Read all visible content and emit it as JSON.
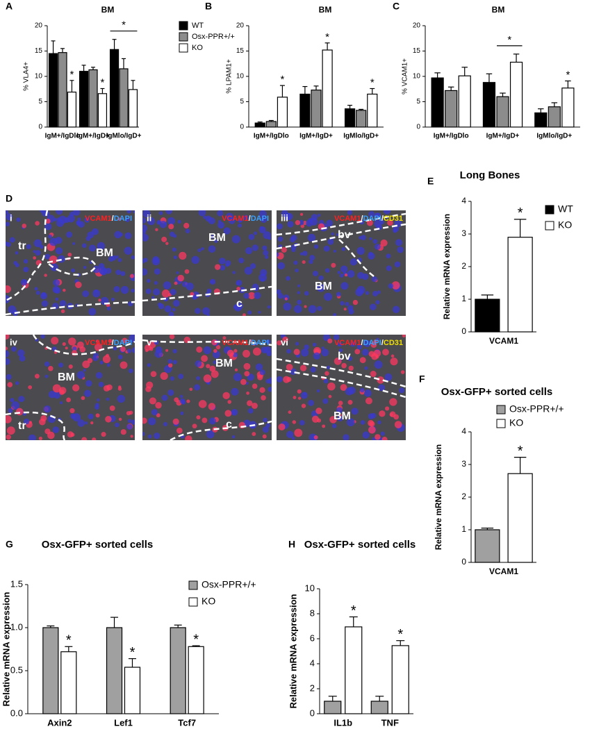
{
  "chart_data": [
    {
      "type": "bar",
      "panel": "A",
      "title": "BM",
      "y_label": "% VLA4+",
      "categories": [
        "IgM+/IgDlo",
        "IgM+/IgD+",
        "IgMlo/IgD+"
      ],
      "series": [
        {
          "name": "WT",
          "color": "#000000",
          "values": [
            14.5,
            11,
            15.3
          ],
          "errors": [
            2.5,
            1.2,
            2
          ],
          "stars": [
            null,
            null,
            null
          ]
        },
        {
          "name": "Osx-PPR+/+",
          "color": "#8c8c8c",
          "values": [
            14.7,
            11.3,
            11.5
          ],
          "errors": [
            0.8,
            0.5,
            2
          ],
          "stars": [
            null,
            null,
            null
          ]
        },
        {
          "name": "KO",
          "color": "#ffffff",
          "values": [
            6.9,
            6.6,
            7.4
          ],
          "errors": [
            2.3,
            1,
            1.8
          ],
          "stars": [
            "*",
            "*",
            null
          ]
        }
      ],
      "brackets": [
        {
          "text": "*",
          "category": 2,
          "series": [
            0,
            2
          ]
        }
      ],
      "ylim": [
        0,
        20
      ],
      "yticks": [
        0,
        5,
        10,
        15,
        20
      ]
    },
    {
      "type": "bar",
      "panel": "B",
      "title": "BM",
      "y_label": "% LPAM1+",
      "categories": [
        "IgM+/IgDlo",
        "IgM+/IgD+",
        "IgMlo/IgD+"
      ],
      "series": [
        {
          "color": "#000000",
          "values": [
            0.8,
            6.5,
            3.6
          ],
          "errors": [
            0.2,
            1.5,
            0.7
          ],
          "stars": [
            null,
            null,
            null
          ]
        },
        {
          "color": "#8c8c8c",
          "values": [
            1.1,
            7.3,
            3.3
          ],
          "errors": [
            0.2,
            0.8,
            0.2
          ],
          "stars": [
            null,
            null,
            null
          ]
        },
        {
          "color": "#ffffff",
          "values": [
            5.9,
            15.2,
            6.5
          ],
          "errors": [
            2.3,
            1.4,
            1.1
          ],
          "stars": [
            "*",
            "*",
            "*"
          ]
        }
      ],
      "brackets": [],
      "ylim": [
        0,
        20
      ],
      "yticks": [
        0,
        5,
        10,
        15,
        20
      ]
    },
    {
      "type": "bar",
      "panel": "C",
      "title": "BM",
      "y_label": "% VCAM1+",
      "categories": [
        "IgM+/IgDlo",
        "IgM+/IgD+",
        "IgMlo/IgD+"
      ],
      "series": [
        {
          "color": "#000000",
          "values": [
            9.7,
            8.8,
            2.8
          ],
          "errors": [
            1,
            1.7,
            0.8
          ],
          "stars": [
            null,
            null,
            null
          ]
        },
        {
          "color": "#8c8c8c",
          "values": [
            7.2,
            6,
            4
          ],
          "errors": [
            0.7,
            0.7,
            0.8
          ],
          "stars": [
            null,
            null,
            null
          ]
        },
        {
          "color": "#ffffff",
          "values": [
            10.1,
            12.8,
            7.7
          ],
          "errors": [
            1.7,
            1.6,
            1.4
          ],
          "stars": [
            null,
            null,
            "*"
          ]
        }
      ],
      "brackets": [
        {
          "text": "*",
          "category": 1,
          "series": [
            1,
            2
          ]
        }
      ],
      "ylim": [
        0,
        20
      ],
      "yticks": [
        0,
        5,
        10,
        15,
        20
      ]
    },
    {
      "type": "bar",
      "panel": "E",
      "title": "Long Bones",
      "y_label": "Relative mRNA expression",
      "categories": [
        "VCAM1"
      ],
      "series": [
        {
          "name": "WT",
          "color": "#000000",
          "values": [
            1.0
          ],
          "errors": [
            0.13
          ],
          "stars": [
            null
          ]
        },
        {
          "name": "KO",
          "color": "#ffffff",
          "values": [
            2.9
          ],
          "errors": [
            0.55
          ],
          "stars": [
            "*"
          ]
        }
      ],
      "brackets": [],
      "ylim": [
        0,
        4
      ],
      "yticks": [
        0,
        1,
        2,
        3,
        4
      ]
    },
    {
      "type": "bar",
      "panel": "F",
      "title": "Osx-GFP+ sorted cells",
      "y_label": "Relative mRNA expression",
      "categories": [
        "VCAM1"
      ],
      "series": [
        {
          "name": "Osx-PPR+/+",
          "color": "#a0a0a0",
          "values": [
            1.0
          ],
          "errors": [
            0.05
          ],
          "stars": [
            null
          ]
        },
        {
          "name": "KO",
          "color": "#ffffff",
          "values": [
            2.72
          ],
          "errors": [
            0.5
          ],
          "stars": [
            "*"
          ]
        }
      ],
      "brackets": [],
      "ylim": [
        0,
        4
      ],
      "yticks": [
        0,
        1,
        2,
        3,
        4
      ]
    },
    {
      "type": "bar",
      "panel": "G",
      "title": "Osx-GFP+ sorted cells",
      "y_label": "Relative mRNA expression",
      "categories": [
        "Axin2",
        "Lef1",
        "Tcf7"
      ],
      "series": [
        {
          "name": "Osx-PPR+/+",
          "color": "#a0a0a0",
          "values": [
            1.0,
            1.0,
            1.0
          ],
          "errors": [
            0.02,
            0.12,
            0.03
          ],
          "stars": [
            null,
            null,
            null
          ]
        },
        {
          "name": "KO",
          "color": "#ffffff",
          "values": [
            0.72,
            0.54,
            0.78
          ],
          "errors": [
            0.06,
            0.1,
            0.01
          ],
          "stars": [
            "*",
            "*",
            "*"
          ]
        }
      ],
      "brackets": [],
      "ylim": [
        0,
        1.5
      ],
      "yticks": [
        {
          "value": 0,
          "label": "0.0"
        },
        {
          "value": 0.5,
          "label": "0.5"
        },
        {
          "value": 1,
          "label": "1.0"
        },
        {
          "value": 1.5,
          "label": "1.5"
        }
      ]
    },
    {
      "type": "bar",
      "panel": "H",
      "title": "Osx-GFP+ sorted cells",
      "y_label": "Relative mRNA expression",
      "categories": [
        "IL1b",
        "TNF"
      ],
      "series": [
        {
          "color": "#a0a0a0",
          "values": [
            1.0,
            1.0
          ],
          "errors": [
            0.4,
            0.4
          ],
          "stars": [
            null,
            null
          ]
        },
        {
          "color": "#ffffff",
          "values": [
            6.95,
            5.45
          ],
          "errors": [
            0.8,
            0.4
          ],
          "stars": [
            "*",
            "*"
          ]
        }
      ],
      "brackets": [],
      "ylim": [
        0,
        10
      ],
      "yticks": [
        0,
        2,
        4,
        6,
        8,
        10
      ]
    }
  ],
  "panel_d": {
    "panel": "D",
    "images": [
      {
        "numeral": "i",
        "stain": [
          {
            "text": "VCAM1",
            "color": "#ff2020"
          },
          {
            "text": "/",
            "color": "#ffffff"
          },
          {
            "text": "DAPI",
            "color": "#3aa0ff"
          }
        ],
        "labels": [
          "tr",
          "BM"
        ]
      },
      {
        "numeral": "ii",
        "stain": [
          {
            "text": "VCAM1",
            "color": "#ff2020"
          },
          {
            "text": "/",
            "color": "#ffffff"
          },
          {
            "text": "DAPI",
            "color": "#3aa0ff"
          }
        ],
        "labels": [
          "BM",
          "c"
        ]
      },
      {
        "numeral": "iii",
        "stain": [
          {
            "text": "VCAM1",
            "color": "#ff2020"
          },
          {
            "text": "/",
            "color": "#ffffff"
          },
          {
            "text": "DAPI",
            "color": "#3aa0ff"
          },
          {
            "text": "/",
            "color": "#ffffff"
          },
          {
            "text": "CD31",
            "color": "#f0e000"
          }
        ],
        "labels": [
          "bv",
          "BM"
        ]
      },
      {
        "numeral": "iv",
        "stain": [
          {
            "text": "VCAM1",
            "color": "#ff2020"
          },
          {
            "text": "/",
            "color": "#ffffff"
          },
          {
            "text": "DAPI",
            "color": "#3aa0ff"
          }
        ],
        "labels": [
          "BM",
          "tr"
        ]
      },
      {
        "numeral": "v",
        "stain": [
          {
            "text": "VCAM1",
            "color": "#ff2020"
          },
          {
            "text": "/",
            "color": "#ffffff"
          },
          {
            "text": "DAPI",
            "color": "#3aa0ff"
          }
        ],
        "labels": [
          "BM",
          "c"
        ]
      },
      {
        "numeral": "vi",
        "stain": [
          {
            "text": "VCAM1",
            "color": "#ff2020"
          },
          {
            "text": "/",
            "color": "#ffffff"
          },
          {
            "text": "DAPI",
            "color": "#3aa0ff"
          },
          {
            "text": "/",
            "color": "#ffffff"
          },
          {
            "text": "CD31",
            "color": "#f0e000"
          }
        ],
        "labels": [
          "bv",
          "BM"
        ]
      }
    ]
  }
}
